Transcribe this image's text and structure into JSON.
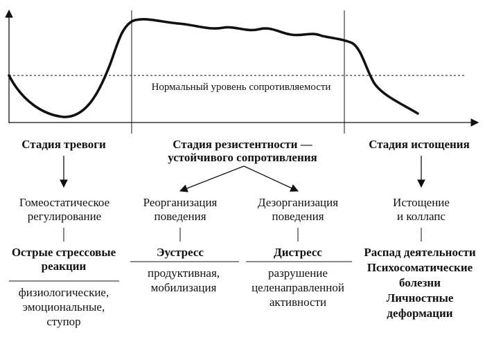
{
  "chart": {
    "level_label": "Нормальный уровень сопротивляемости"
  },
  "stages": [
    {
      "title": "Стадия тревоги"
    },
    {
      "title_line1": "Стадия резистентности —",
      "title_line2": "устойчивого сопротивления"
    },
    {
      "title": "Стадия истощения"
    }
  ],
  "outcomes": {
    "homeostatic": {
      "line1": "Гомеостатическое",
      "line2": "регулирование"
    },
    "reorganization": {
      "line1": "Реорганизация",
      "line2": "поведения"
    },
    "disorganization": {
      "line1": "Дезорганизация",
      "line2": "поведения"
    },
    "exhaustion": {
      "line1": "Истощение",
      "line2": "и коллапс"
    }
  },
  "reactions": {
    "acute": {
      "line1": "Острые стрессовые",
      "line2": "реакции"
    },
    "eustress": "Эустресс",
    "distress": "Дистресс",
    "decay": {
      "line1": "Распад деятельности",
      "line2": "Психосоматические",
      "line3": "болезни",
      "line4": "Личностные",
      "line5": "деформации"
    }
  },
  "descriptions": {
    "acute": {
      "line1": "физиологические,",
      "line2": "эмоциональные,",
      "line3": "ступор"
    },
    "eustress": {
      "line1": "продуктивная,",
      "line2": "мобилизация"
    },
    "distress": {
      "line1": "разрушение",
      "line2": "целенаправленной",
      "line3": "активности"
    }
  }
}
